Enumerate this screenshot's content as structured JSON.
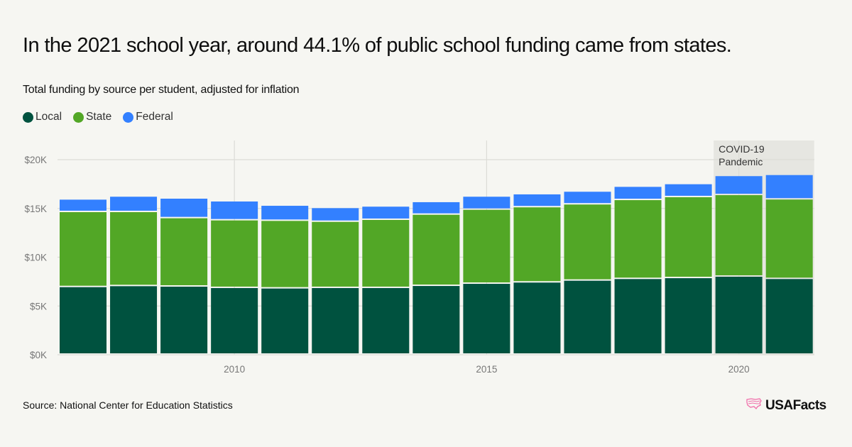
{
  "title": "In the 2021 school year, around 44.1% of public school funding came from states.",
  "subtitle": "Total funding by source per student, adjusted for inflation",
  "legend": [
    {
      "label": "Local",
      "color": "#00523f"
    },
    {
      "label": "State",
      "color": "#52a726"
    },
    {
      "label": "Federal",
      "color": "#3380ff"
    }
  ],
  "source": "Source: National Center for Education Statistics",
  "brand": {
    "name": "USAFacts",
    "icon": "us-map-icon",
    "icon_color": "#f06eaa"
  },
  "chart_data": {
    "type": "bar",
    "stacked": true,
    "title": "Total funding by source per student, adjusted for inflation",
    "xlabel": "",
    "ylabel": "",
    "categories": [
      "2007",
      "2008",
      "2009",
      "2010",
      "2011",
      "2012",
      "2013",
      "2014",
      "2015",
      "2016",
      "2017",
      "2018",
      "2019",
      "2020",
      "2021"
    ],
    "series": [
      {
        "name": "Local",
        "color": "#00523f",
        "values": [
          6930,
          7030,
          6980,
          6840,
          6790,
          6840,
          6840,
          7050,
          7270,
          7400,
          7590,
          7760,
          7850,
          8000,
          7760
        ]
      },
      {
        "name": "State",
        "color": "#52a726",
        "values": [
          7690,
          7590,
          7010,
          6930,
          6930,
          6780,
          6980,
          7300,
          7590,
          7710,
          7810,
          8090,
          8300,
          8360,
          8150
        ]
      },
      {
        "name": "Federal",
        "color": "#3380ff",
        "values": [
          1280,
          1580,
          2010,
          1940,
          1550,
          1410,
          1360,
          1290,
          1340,
          1330,
          1310,
          1360,
          1330,
          1950,
          2510
        ]
      }
    ],
    "ylim": [
      0,
      20000
    ],
    "yticks": [
      0,
      5000,
      10000,
      15000,
      20000
    ],
    "ytick_labels": [
      "$0K",
      "$5K",
      "$10K",
      "$15K",
      "$20K"
    ],
    "xticks": [
      "2010",
      "2015",
      "2020"
    ],
    "grid": true,
    "legend_position": "top-left",
    "annotations": [
      {
        "text_lines": [
          "COVID-19",
          "Pandemic"
        ],
        "span": [
          "2020",
          "2021"
        ],
        "shade_color": "#e6e6e1"
      }
    ]
  }
}
